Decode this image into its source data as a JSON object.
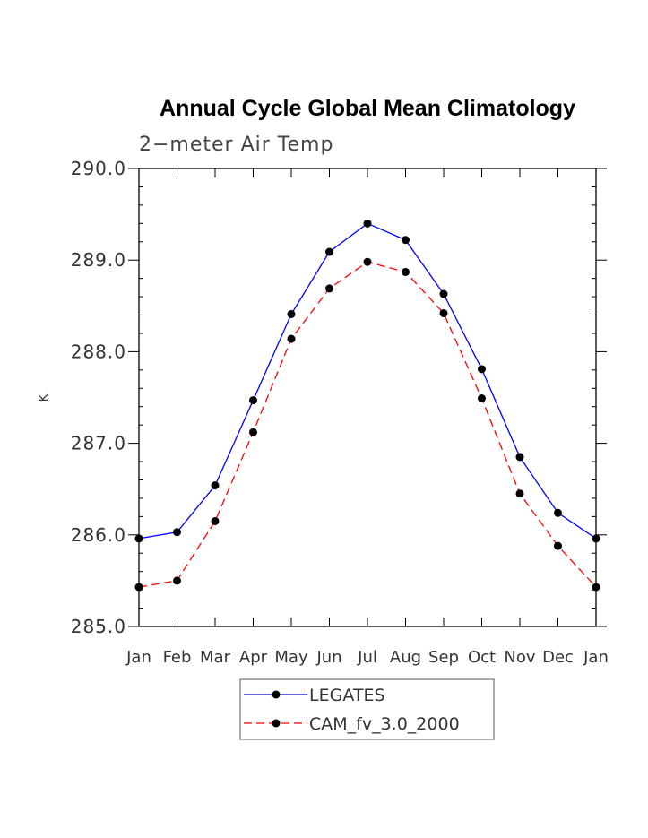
{
  "chart_data": {
    "type": "line",
    "title": "Annual Cycle Global Mean Climatology",
    "subtitle": "2−meter Air Temp",
    "xlabel": "",
    "ylabel": "K",
    "categories": [
      "Jan",
      "Feb",
      "Mar",
      "Apr",
      "May",
      "Jun",
      "Jul",
      "Aug",
      "Sep",
      "Oct",
      "Nov",
      "Dec",
      "Jan"
    ],
    "ylim": [
      285.0,
      290.0
    ],
    "yticks": [
      "285.0",
      "286.0",
      "287.0",
      "288.0",
      "289.0",
      "290.0"
    ],
    "grid": false,
    "legend_position": "bottom-center",
    "series": [
      {
        "name": "LEGATES",
        "color": "#0000ff",
        "dash": "solid",
        "values": [
          285.96,
          286.03,
          286.54,
          287.47,
          288.41,
          289.09,
          289.4,
          289.22,
          288.63,
          287.81,
          286.85,
          286.24,
          285.96
        ]
      },
      {
        "name": "CAM_fv_3.0_2000",
        "color": "#ff0000",
        "dash": "dashed",
        "values": [
          285.43,
          285.5,
          286.15,
          287.12,
          288.14,
          288.69,
          288.98,
          288.87,
          288.42,
          287.49,
          286.45,
          285.88,
          285.43
        ]
      }
    ]
  }
}
